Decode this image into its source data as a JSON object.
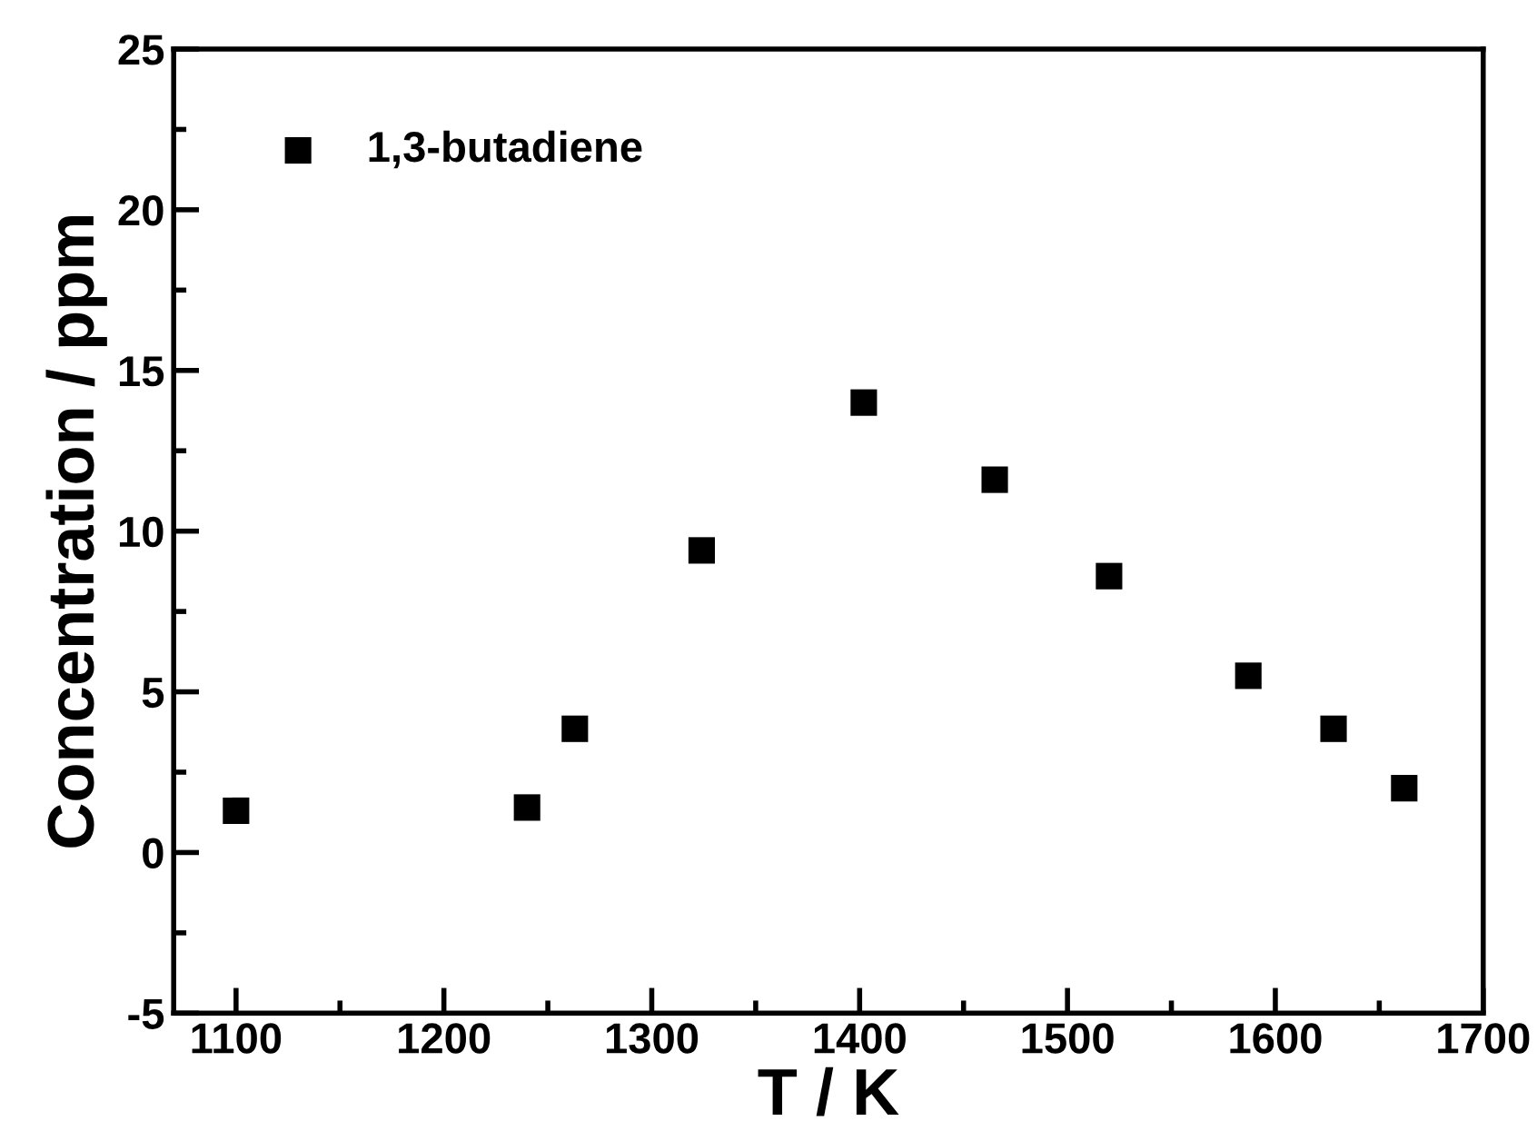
{
  "chart_data": {
    "type": "scatter",
    "xlabel": "T / K",
    "ylabel": "Concentration / ppm",
    "series": [
      {
        "name": "1,3-butadiene",
        "color": "#000000",
        "x": [
          1100,
          1240,
          1263,
          1324,
          1402,
          1465,
          1520,
          1587,
          1628,
          1662
        ],
        "values": [
          1.3,
          1.4,
          3.85,
          9.4,
          14.0,
          11.6,
          8.6,
          5.5,
          3.85,
          2.0
        ]
      }
    ],
    "xlim": [
      1070,
      1700
    ],
    "xticks": [
      1100,
      1200,
      1300,
      1400,
      1500,
      1600,
      1700
    ],
    "ylim": [
      -5,
      25
    ],
    "yticks": [
      -5,
      0,
      5,
      10,
      15,
      20,
      25
    ],
    "marker": "square",
    "legend": "top left",
    "grid": false
  }
}
